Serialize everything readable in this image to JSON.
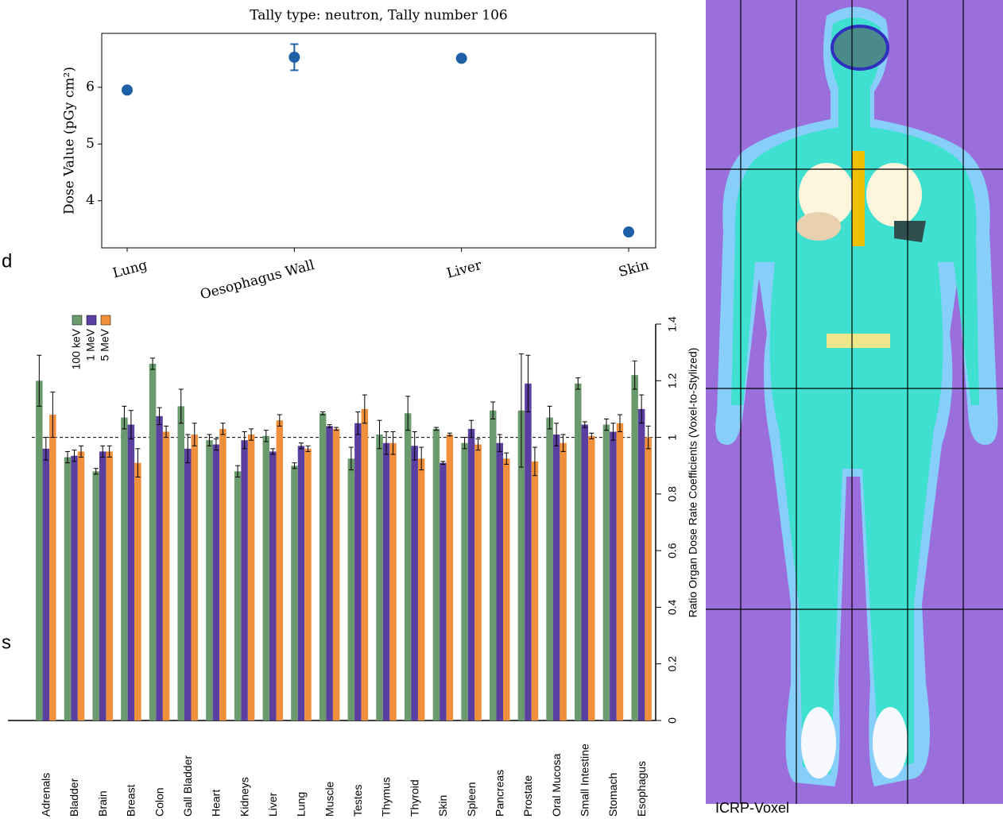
{
  "chart_data": [
    {
      "type": "scatter",
      "title": "Tally type: neutron, Tally number 106",
      "y_label": "Dose Value (pGy cm²)",
      "categories": [
        "Lung",
        "Oesophagus Wall",
        "Liver",
        "Skin"
      ],
      "values": [
        5.95,
        6.53,
        6.51,
        3.45
      ],
      "errors": [
        0.03,
        0.23,
        0.03,
        0.03
      ],
      "color": "#1f5fa8",
      "ylim": [
        3.17,
        6.95
      ],
      "yticks": [
        4,
        5,
        6
      ]
    },
    {
      "type": "bar",
      "y_label": "Ratio Organ Dose Rate Coefficients (Voxel-to-Stylized)",
      "categories": [
        "Adrenals",
        "Bladder",
        "Brain",
        "Breast",
        "Colon",
        "Gall Bladder",
        "Heart",
        "Kidneys",
        "Liver",
        "Lung",
        "Muscle",
        "Testes",
        "Thymus",
        "Thyroid",
        "Skin",
        "Spleen",
        "Pancreas",
        "Prostate",
        "Oral Mucosa",
        "Small Intestine",
        "Stomach",
        "Esophagus"
      ],
      "series": [
        {
          "name": "100 keV",
          "color": "#6a9a6e",
          "values": [
            1.2,
            0.93,
            0.88,
            1.07,
            1.26,
            1.11,
            0.99,
            0.88,
            1.005,
            0.9,
            1.085,
            0.925,
            1.01,
            1.085,
            1.03,
            0.98,
            1.095,
            1.095,
            1.07,
            1.19,
            1.045,
            1.22
          ],
          "errors": [
            0.09,
            0.02,
            0.01,
            0.04,
            0.02,
            0.06,
            0.02,
            0.02,
            0.02,
            0.01,
            0.005,
            0.04,
            0.05,
            0.06,
            0.005,
            0.02,
            0.03,
            0.2,
            0.04,
            0.02,
            0.02,
            0.05
          ]
        },
        {
          "name": "1 MeV",
          "color": "#5b3fa0",
          "values": [
            0.96,
            0.935,
            0.95,
            1.045,
            1.075,
            0.96,
            0.975,
            0.99,
            0.95,
            0.97,
            1.04,
            1.05,
            0.98,
            0.97,
            0.91,
            1.03,
            0.98,
            1.19,
            1.01,
            1.045,
            1.02,
            1.1
          ],
          "errors": [
            0.04,
            0.02,
            0.02,
            0.05,
            0.03,
            0.05,
            0.02,
            0.03,
            0.01,
            0.01,
            0.005,
            0.04,
            0.04,
            0.05,
            0.005,
            0.03,
            0.03,
            0.1,
            0.04,
            0.01,
            0.03,
            0.05
          ]
        },
        {
          "name": "5 MeV",
          "color": "#f0903c",
          "values": [
            1.08,
            0.95,
            0.95,
            0.91,
            1.02,
            1.01,
            1.03,
            1.01,
            1.06,
            0.96,
            1.03,
            1.1,
            0.98,
            0.925,
            1.01,
            0.975,
            0.925,
            0.915,
            0.98,
            1.005,
            1.05,
            1.0
          ],
          "errors": [
            0.08,
            0.02,
            0.02,
            0.05,
            0.02,
            0.04,
            0.02,
            0.02,
            0.02,
            0.01,
            0.005,
            0.05,
            0.04,
            0.04,
            0.005,
            0.02,
            0.02,
            0.05,
            0.03,
            0.01,
            0.03,
            0.04
          ]
        }
      ],
      "reference_line": 1,
      "ylim": [
        0,
        1.4
      ],
      "yticks": [
        0,
        0.2,
        0.4,
        0.6,
        0.8,
        1,
        1.2,
        1.4
      ]
    }
  ],
  "fragments": [
    "d",
    "s"
  ],
  "image_caption": "ICRP-Voxel"
}
